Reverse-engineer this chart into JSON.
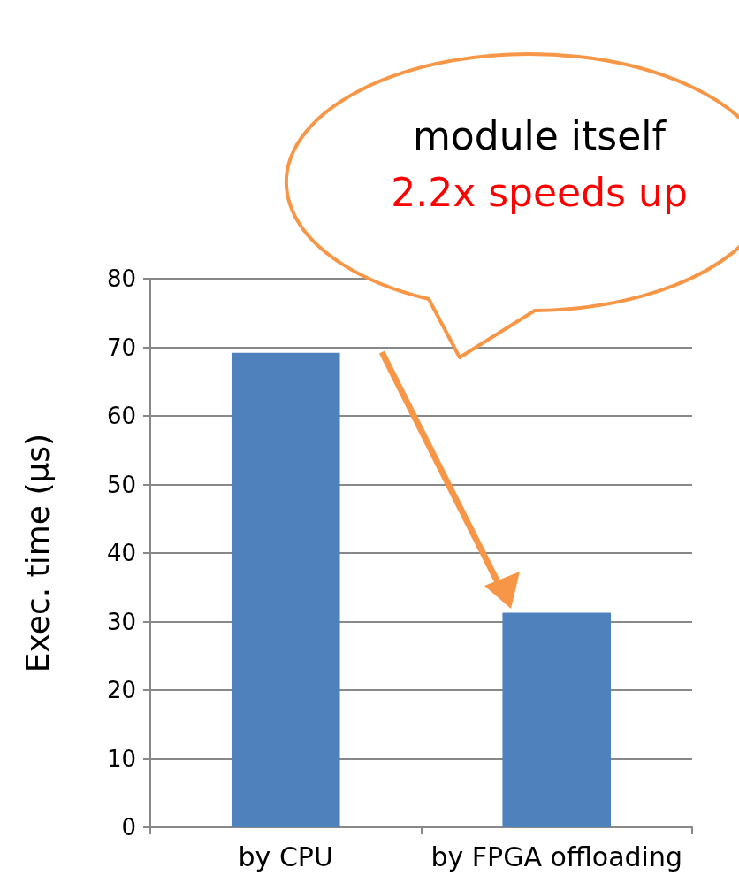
{
  "chart_data": {
    "type": "bar",
    "categories": [
      "by CPU",
      "by FPGA offloading"
    ],
    "values": [
      69.2,
      31.3
    ],
    "color": "#4f81bd",
    "ylabel": "Exec. time (μs)",
    "ylim": [
      0,
      80
    ],
    "yticks": [
      0,
      10,
      20,
      30,
      40,
      50,
      60,
      70,
      80
    ],
    "grid": "y",
    "annotations": [
      "module itself",
      "2.2x speeds up"
    ]
  }
}
